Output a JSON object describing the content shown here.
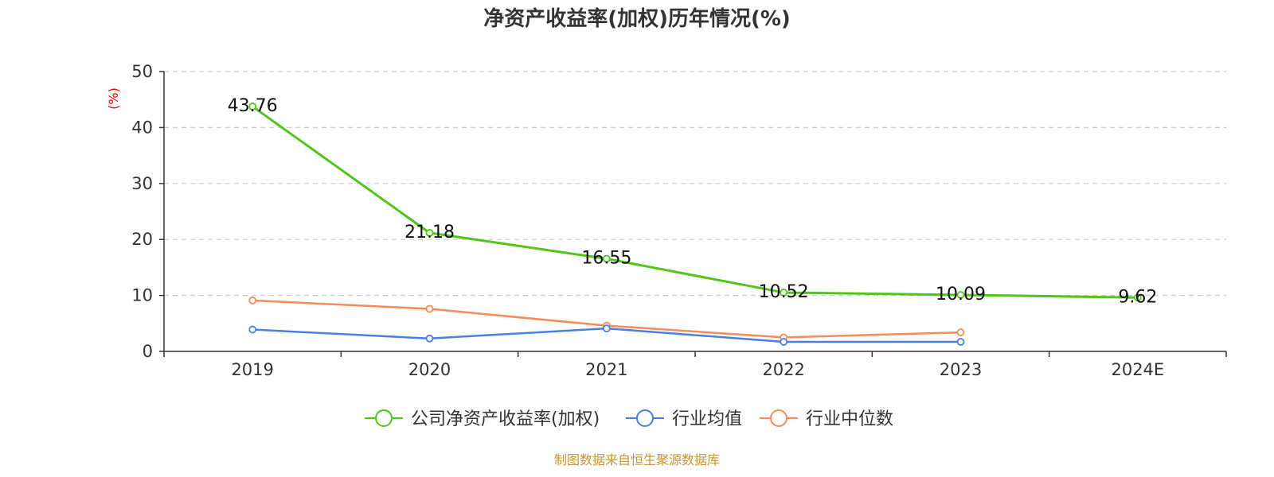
{
  "chart_data": {
    "type": "line",
    "title": "净资产收益率(加权)历年情况(%)",
    "ylabel": "(%)",
    "xlabel": "",
    "categories": [
      "2019",
      "2020",
      "2021",
      "2022",
      "2023",
      "2024E"
    ],
    "ylim": [
      0,
      50
    ],
    "yticks": [
      0,
      10,
      20,
      30,
      40,
      50
    ],
    "grid": true,
    "legend_position": "bottom",
    "series": [
      {
        "name": "公司净资产收益率(加权)",
        "color": "#52c41a",
        "values": [
          43.76,
          21.18,
          16.55,
          10.52,
          10.09,
          9.62
        ],
        "labels": [
          "43.76",
          "21.18",
          "16.55",
          "10.52",
          "10.09",
          "9.62"
        ],
        "show_labels": true,
        "line_width": 3
      },
      {
        "name": "行业均值",
        "color": "#4a7fe0",
        "values": [
          3.9,
          2.3,
          4.1,
          1.7,
          1.7,
          null
        ],
        "show_labels": false,
        "line_width": 2.5
      },
      {
        "name": "行业中位数",
        "color": "#f58a5a",
        "values": [
          9.1,
          7.6,
          4.6,
          2.5,
          3.4,
          null
        ],
        "show_labels": false,
        "line_width": 2.5
      }
    ],
    "source": "制图数据来自恒生聚源数据库"
  }
}
